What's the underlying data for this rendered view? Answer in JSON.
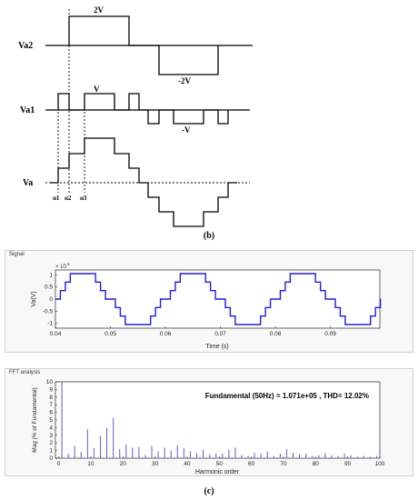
{
  "figure_b": {
    "labels": {
      "va2": "Va2",
      "va1": "Va1",
      "va": "Va",
      "plus_2v": "2V",
      "minus_2v": "-2V",
      "plus_v": "V",
      "minus_v": "-V",
      "alpha1": "α1",
      "alpha2": "α2",
      "alpha3": "α3"
    },
    "caption": "(b)"
  },
  "signal_panel": {
    "title": "Signal",
    "exponent": "× 10",
    "exponent_power": "5",
    "color": "#1f1fd6"
  },
  "fft_panel": {
    "title": "FFT analysis",
    "annotation": "Fundamental (50Hz) = 1.071e+05 , THD= 12.02%",
    "color": "#6b6bd8"
  },
  "caption_c": "(c)",
  "chart_data": [
    {
      "type": "line",
      "title": "",
      "xlabel": "Time (s)",
      "ylabel": "Va(V)",
      "xlim": [
        0.04,
        0.099
      ],
      "ylim": [
        -1.2,
        1.2
      ],
      "y_scale_note": "× 10^5",
      "xticks": [
        "0.04",
        "0.05",
        "0.06",
        "0.07",
        "0.08",
        "0.09"
      ],
      "yticks": [
        "-1",
        "-0.5",
        "0",
        "0.5",
        "1"
      ],
      "series": [
        {
          "x": [
            0.04,
            0.0409,
            0.0409,
            0.0418,
            0.0418,
            0.0427,
            0.0427,
            0.0445,
            0.0445,
            0.0473,
            0.0473,
            0.0482,
            0.0482,
            0.0491,
            0.0491,
            0.0509,
            0.0509,
            0.0518,
            0.0518,
            0.0527,
            0.0527,
            0.0545,
            0.0545,
            0.0573,
            0.0573,
            0.0582,
            0.0582,
            0.0591,
            0.0591,
            0.0609,
            0.0609,
            0.0618,
            0.0618,
            0.0627,
            0.0627,
            0.0645,
            0.0645,
            0.0673,
            0.0673,
            0.0682,
            0.0682,
            0.0691,
            0.0691,
            0.0709,
            0.0709,
            0.0718,
            0.0718,
            0.0727,
            0.0727,
            0.0745,
            0.0745,
            0.0773,
            0.0773,
            0.0782,
            0.0782,
            0.0791,
            0.0791,
            0.0809,
            0.0809,
            0.0818,
            0.0818,
            0.0827,
            0.0827,
            0.0845,
            0.0845,
            0.0873,
            0.0873,
            0.0882,
            0.0882,
            0.0891,
            0.0891,
            0.0909,
            0.0909,
            0.0918,
            0.0918,
            0.0927,
            0.0927,
            0.0945,
            0.0945,
            0.0973,
            0.0973,
            0.0982,
            0.0982,
            0.0991,
            0.0991,
            0.099
          ],
          "y": [
            0.0,
            0.0,
            0.35,
            0.35,
            0.7,
            0.7,
            1.05,
            1.05,
            1.05,
            1.05,
            0.7,
            0.7,
            0.35,
            0.35,
            0.0,
            0.0,
            -0.35,
            -0.35,
            -0.7,
            -0.7,
            -1.05,
            -1.05,
            -1.05,
            -1.05,
            -0.7,
            -0.7,
            -0.35,
            -0.35,
            0.0,
            0.0,
            0.35,
            0.35,
            0.7,
            0.7,
            1.05,
            1.05,
            1.05,
            1.05,
            0.7,
            0.7,
            0.35,
            0.35,
            0.0,
            0.0,
            -0.35,
            -0.35,
            -0.7,
            -0.7,
            -1.05,
            -1.05,
            -1.05,
            -1.05,
            -0.7,
            -0.7,
            -0.35,
            -0.35,
            0.0,
            0.0,
            0.35,
            0.35,
            0.7,
            0.7,
            1.05,
            1.05,
            1.05,
            1.05,
            0.7,
            0.7,
            0.35,
            0.35,
            0.0,
            0.0,
            -0.35,
            -0.35,
            -0.7,
            -0.7,
            -1.05,
            -1.05,
            -1.05,
            -1.05,
            -0.7,
            -0.7,
            -0.35,
            -0.35,
            0.0,
            0.0
          ]
        }
      ]
    },
    {
      "type": "bar",
      "title": "",
      "xlabel": "Harmonic order",
      "ylabel": "Mag (% of Fundamental)",
      "xlim": [
        -1,
        100
      ],
      "ylim": [
        0,
        10
      ],
      "xticks": [
        "0",
        "10",
        "20",
        "30",
        "40",
        "50",
        "60",
        "70",
        "80",
        "90",
        "100"
      ],
      "yticks": [
        "0",
        "1",
        "2",
        "3",
        "4",
        "5",
        "6",
        "7",
        "8",
        "9",
        "10"
      ],
      "x": [
        1,
        3,
        5,
        7,
        9,
        11,
        13,
        15,
        17,
        19,
        21,
        23,
        25,
        27,
        29,
        31,
        33,
        35,
        37,
        39,
        41,
        43,
        45,
        47,
        49,
        51,
        53,
        55,
        57,
        59,
        61,
        63,
        65,
        67,
        69,
        71,
        73,
        75,
        77,
        79,
        81,
        83,
        85,
        87,
        89,
        91,
        93,
        95,
        97,
        99
      ],
      "values": [
        10,
        0.6,
        1.6,
        0.8,
        3.8,
        1.3,
        2.9,
        4.0,
        5.3,
        1.2,
        1.8,
        1.4,
        1.5,
        0.4,
        1.6,
        0.9,
        1.4,
        1.0,
        1.7,
        1.3,
        0.9,
        0.7,
        1.1,
        0.5,
        0.6,
        0.6,
        1.1,
        1.4,
        0.4,
        0.3,
        0.7,
        0.6,
        0.9,
        0.3,
        0.6,
        1.2,
        0.7,
        0.5,
        0.6,
        0.3,
        0.4,
        0.7,
        0.4,
        0.3,
        0.6,
        0.4,
        0.2,
        0.3,
        0.2,
        0.3
      ]
    }
  ]
}
